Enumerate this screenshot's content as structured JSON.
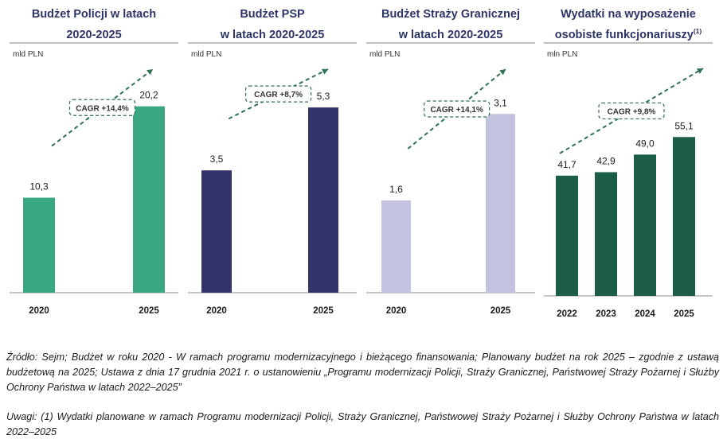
{
  "chart_data": [
    {
      "type": "bar",
      "title": "Budżet Policji w latach\n2020-2025",
      "title_sup": "",
      "unit": "mld PLN",
      "categories": [
        "2020",
        "2025"
      ],
      "values": [
        10.3,
        20.2
      ],
      "value_labels": [
        "10,3",
        "20,2"
      ],
      "cagr_label": "CAGR +14,4%",
      "color": "#3aa981",
      "ylim": [
        0,
        25
      ],
      "grid": false
    },
    {
      "type": "bar",
      "title": "Budżet PSP\nw latach 2020-2025",
      "title_sup": "",
      "unit": "mld PLN",
      "categories": [
        "2020",
        "2025"
      ],
      "values": [
        3.5,
        5.3
      ],
      "value_labels": [
        "3,5",
        "5,3"
      ],
      "cagr_label": "CAGR +8,7%",
      "color": "#34346a",
      "ylim": [
        0,
        6.6
      ],
      "grid": false
    },
    {
      "type": "bar",
      "title": "Budżet Straży Granicznej\nw latach 2020-2025",
      "title_sup": "",
      "unit": "mld PLN",
      "categories": [
        "2020",
        "2025"
      ],
      "values": [
        1.6,
        3.1
      ],
      "value_labels": [
        "1,6",
        "3,1"
      ],
      "cagr_label": "CAGR +14,1%",
      "color": "#c3c3df",
      "ylim": [
        0,
        4
      ],
      "grid": false
    },
    {
      "type": "bar",
      "title": "Wydatki na wyposażenie\nosobiste funkcjonariuszy",
      "title_sup": "(1)",
      "unit": "mln PLN",
      "categories": [
        "2022",
        "2023",
        "2024",
        "2025"
      ],
      "values": [
        41.7,
        42.9,
        49.0,
        55.1
      ],
      "value_labels": [
        "41,7",
        "42,9",
        "49,0",
        "55,1"
      ],
      "cagr_label": "CAGR +9,8%",
      "color": "#1c5e45",
      "ylim": [
        0,
        80
      ],
      "grid": false
    }
  ],
  "notes": {
    "source": "Źródło: Sejm; Budżet w roku 2020 - W ramach programu modernizacyjnego i bieżącego finansowania; Planowany budżet na rok 2025 – zgodnie z ustawą budżetową na 2025; Ustawa z dnia 17 grudnia 2021 r. o ustanowieniu „Programu modernizacji Policji, Straży Granicznej, Państwowej Straży Pożarnej i Służby Ochrony Państwa w latach 2022–2025”",
    "remarks": "Uwagi: (1) Wydatki planowane w ramach Programu modernizacji Policji, Straży Granicznej, Państwowej Straży Pożarnej i Służby Ochrony Państwa w latach 2022–2025"
  }
}
